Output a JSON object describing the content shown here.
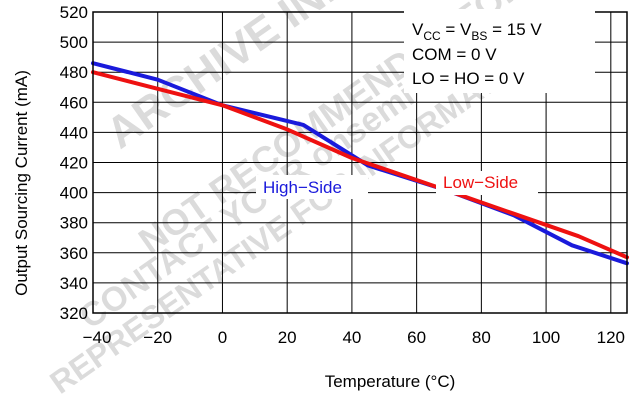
{
  "chart_data": {
    "type": "line",
    "xlabel": "Temperature (°C)",
    "ylabel": "Output Sourcing Current (mA)",
    "xlim": [
      -40,
      125
    ],
    "ylim": [
      320,
      520
    ],
    "x_ticks": [
      -40,
      -20,
      0,
      20,
      40,
      60,
      80,
      100,
      120
    ],
    "x_tick_labels": [
      "−40",
      "−20",
      "0",
      "20",
      "40",
      "60",
      "80",
      "100",
      "120"
    ],
    "y_ticks": [
      320,
      340,
      360,
      380,
      400,
      420,
      440,
      460,
      480,
      500,
      520
    ],
    "grid": true,
    "series": [
      {
        "name": "High−Side",
        "color": "#1a1adb",
        "x": [
          -40,
          -20,
          0,
          25,
          45,
          70,
          90,
          108,
          125
        ],
        "y": [
          486,
          475,
          458,
          445,
          418,
          401,
          385,
          365,
          353
        ]
      },
      {
        "name": "Low−Side",
        "color": "#ee1111",
        "x": [
          -40,
          -20,
          0,
          20,
          40,
          70,
          90,
          110,
          125
        ],
        "y": [
          480,
          469,
          458,
          442,
          423,
          401,
          386,
          371,
          357
        ]
      }
    ],
    "legend": {
      "placement": "top-right",
      "lines": [
        {
          "main": "V",
          "sub1": "CC",
          "mid": " = V",
          "sub2": "BS",
          "tail": " = 15 V"
        },
        {
          "main": "COM = 0 V"
        },
        {
          "main": "LO = HO = 0 V"
        }
      ]
    }
  },
  "watermark": {
    "words": [
      "ARCHIVE INFORMATION",
      "NOT RECOMMENDED FOR NEW DESIGN",
      "CONTACT YOUR onsemi",
      "REPRESENTATIVE FOR INFORMATION"
    ]
  }
}
